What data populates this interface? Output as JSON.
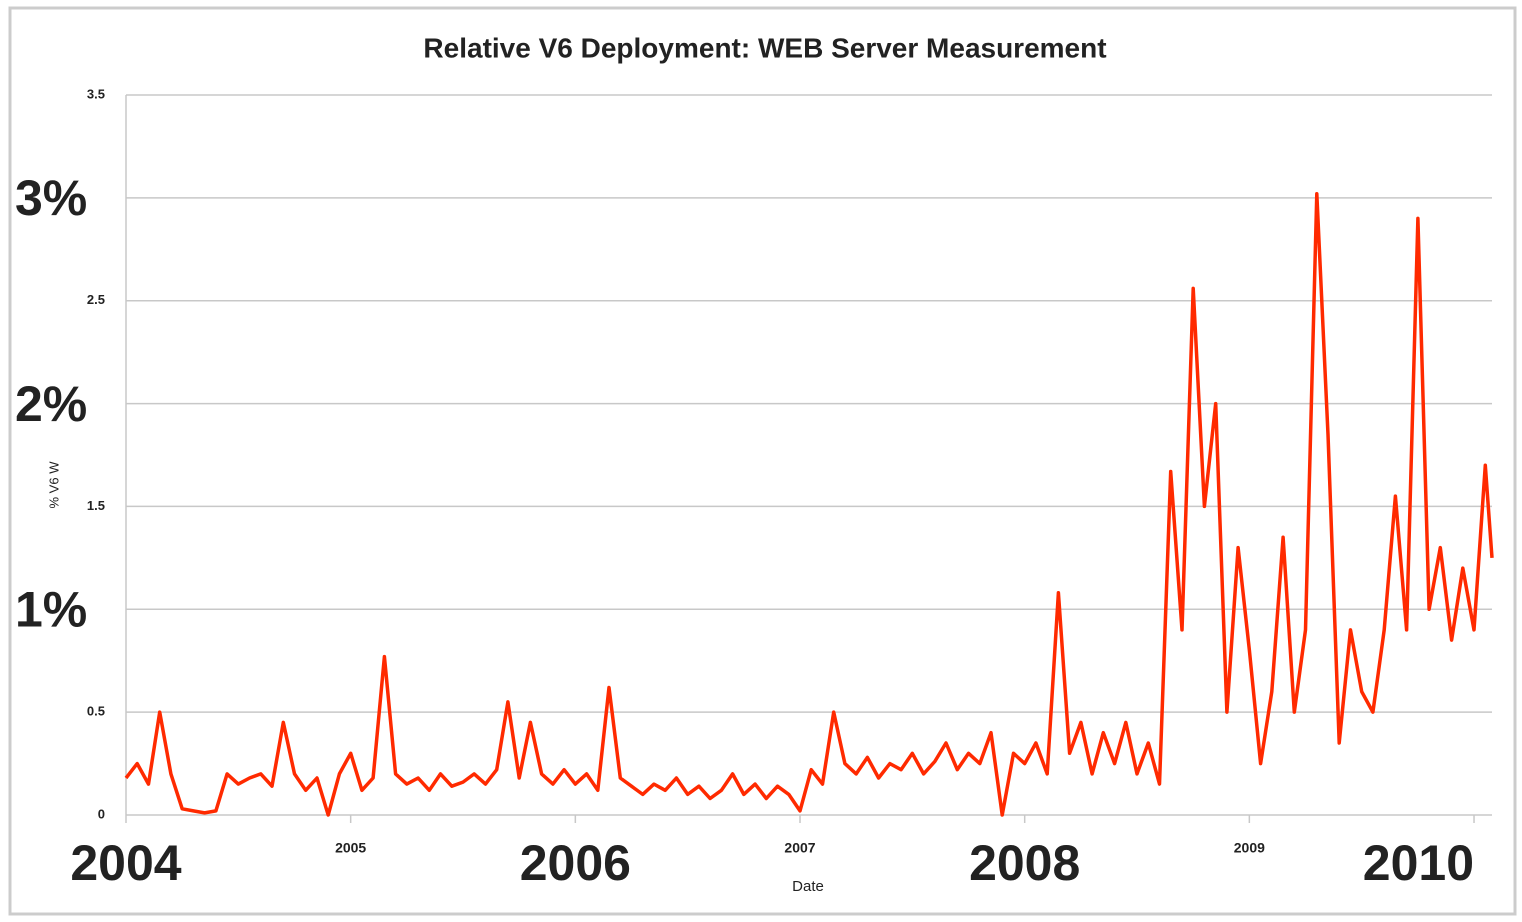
{
  "chart_data": {
    "type": "line",
    "title": "Relative  V6 Deployment: WEB Server Measurement",
    "xlabel": "Date",
    "ylabel": "% V6 W",
    "xlim": [
      2004,
      2010.08
    ],
    "ylim": [
      0,
      3.5
    ],
    "xticks": [
      2004,
      2005,
      2006,
      2007,
      2008,
      2009,
      2010
    ],
    "yticks": [
      0,
      0.5,
      {
        "value": 1,
        "label": "1%"
      },
      1.5,
      {
        "value": 2,
        "label": "2%"
      },
      2.5,
      {
        "value": 3,
        "label": "3%"
      },
      3.5
    ],
    "grid": true,
    "series": [
      {
        "color": "#ff2a00",
        "x": [
          2004.0,
          2004.05,
          2004.1,
          2004.15,
          2004.2,
          2004.25,
          2004.3,
          2004.35,
          2004.4,
          2004.45,
          2004.5,
          2004.55,
          2004.6,
          2004.65,
          2004.7,
          2004.75,
          2004.8,
          2004.85,
          2004.9,
          2004.95,
          2005.0,
          2005.05,
          2005.1,
          2005.15,
          2005.2,
          2005.25,
          2005.3,
          2005.35,
          2005.4,
          2005.45,
          2005.5,
          2005.55,
          2005.6,
          2005.65,
          2005.7,
          2005.75,
          2005.8,
          2005.85,
          2005.9,
          2005.95,
          2006.0,
          2006.05,
          2006.1,
          2006.15,
          2006.2,
          2006.25,
          2006.3,
          2006.35,
          2006.4,
          2006.45,
          2006.5,
          2006.55,
          2006.6,
          2006.65,
          2006.7,
          2006.75,
          2006.8,
          2006.85,
          2006.9,
          2006.95,
          2007.0,
          2007.05,
          2007.1,
          2007.15,
          2007.2,
          2007.25,
          2007.3,
          2007.35,
          2007.4,
          2007.45,
          2007.5,
          2007.55,
          2007.6,
          2007.65,
          2007.7,
          2007.75,
          2007.8,
          2007.85,
          2007.9,
          2007.95,
          2008.0,
          2008.05,
          2008.1,
          2008.15,
          2008.2,
          2008.25,
          2008.3,
          2008.35,
          2008.4,
          2008.45,
          2008.5,
          2008.55,
          2008.6,
          2008.65,
          2008.7,
          2008.75,
          2008.8,
          2008.85,
          2008.9,
          2008.95,
          2009.0,
          2009.05,
          2009.1,
          2009.15,
          2009.2,
          2009.25,
          2009.3,
          2009.35,
          2009.4,
          2009.45,
          2009.5,
          2009.55,
          2009.6,
          2009.65,
          2009.7,
          2009.75,
          2009.8,
          2009.85,
          2009.9,
          2009.95,
          2010.0,
          2010.05,
          2010.08
        ],
        "values": [
          0.18,
          0.25,
          0.15,
          0.5,
          0.2,
          0.03,
          0.02,
          0.01,
          0.02,
          0.2,
          0.15,
          0.18,
          0.2,
          0.14,
          0.45,
          0.2,
          0.12,
          0.18,
          0.0,
          0.2,
          0.3,
          0.12,
          0.18,
          0.77,
          0.2,
          0.15,
          0.18,
          0.12,
          0.2,
          0.14,
          0.16,
          0.2,
          0.15,
          0.22,
          0.55,
          0.18,
          0.45,
          0.2,
          0.15,
          0.22,
          0.15,
          0.2,
          0.12,
          0.62,
          0.18,
          0.14,
          0.1,
          0.15,
          0.12,
          0.18,
          0.1,
          0.14,
          0.08,
          0.12,
          0.2,
          0.1,
          0.15,
          0.08,
          0.14,
          0.1,
          0.02,
          0.22,
          0.15,
          0.5,
          0.25,
          0.2,
          0.28,
          0.18,
          0.25,
          0.22,
          0.3,
          0.2,
          0.26,
          0.35,
          0.22,
          0.3,
          0.25,
          0.4,
          0.0,
          0.3,
          0.25,
          0.35,
          0.2,
          1.08,
          0.3,
          0.45,
          0.2,
          0.4,
          0.25,
          0.45,
          0.2,
          0.35,
          0.15,
          1.67,
          0.9,
          2.56,
          1.5,
          2.0,
          0.5,
          1.3,
          0.8,
          0.25,
          0.6,
          1.35,
          0.5,
          0.9,
          3.02,
          1.85,
          0.35,
          0.9,
          0.6,
          0.5,
          0.9,
          1.55,
          0.9,
          2.9,
          1.0,
          1.3,
          0.85,
          1.2,
          0.9,
          1.7,
          1.25
        ]
      }
    ]
  }
}
